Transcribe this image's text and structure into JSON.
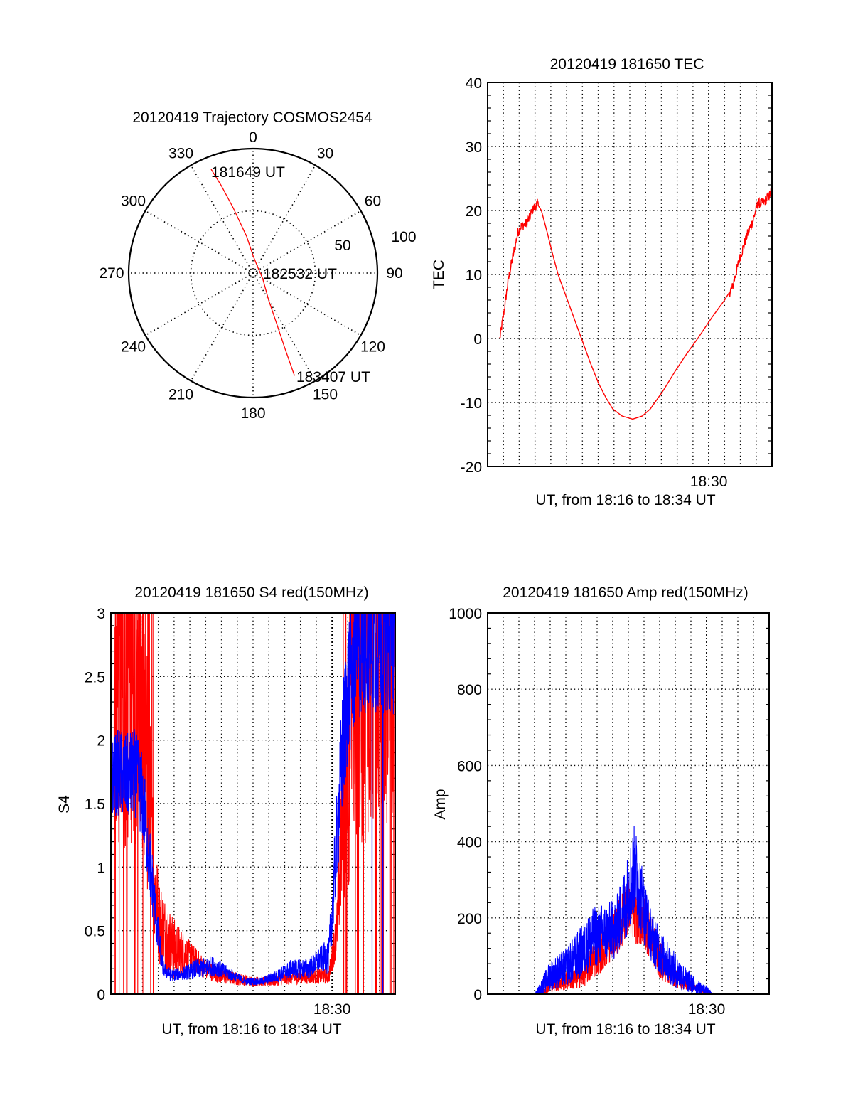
{
  "chart_data": [
    {
      "id": "trajectory",
      "type": "polar",
      "title": "20120419 Trajectory COSMOS2454",
      "satellite": "COSMOS2454",
      "date": "20120419",
      "azimuth_ticks": [
        "0",
        "30",
        "60",
        "90",
        "120",
        "150",
        "180",
        "210",
        "240",
        "270",
        "300",
        "330"
      ],
      "radial_ticks": [
        "50",
        "100"
      ],
      "radial_range": [
        0,
        100
      ],
      "grid": true,
      "series": [
        {
          "name": "track",
          "color": "#ff0000",
          "points_az_r": [
            [
              338,
              90
            ],
            [
              340,
              75
            ],
            [
              343,
              55
            ],
            [
              350,
              30
            ],
            [
              0,
              14
            ],
            [
              40,
              6
            ],
            [
              120,
              9
            ],
            [
              150,
              25
            ],
            [
              155,
              45
            ],
            [
              157,
              65
            ],
            [
              158,
              89
            ]
          ]
        }
      ],
      "annotations": [
        {
          "label": "181649 UT",
          "at": "start"
        },
        {
          "label": "182532 UT",
          "at": "closest"
        },
        {
          "label": "183407 UT",
          "at": "end"
        }
      ]
    },
    {
      "id": "tec",
      "type": "line",
      "title": "20120419 181650 TEC",
      "xlabel": "UT, from 18:16 to 18:34 UT",
      "ylabel": "TEC",
      "xlim_minutes": [
        0,
        18
      ],
      "x_origin": "18:16",
      "x_tick_labels": [
        {
          "t": 14,
          "label": "18:30"
        }
      ],
      "minor_grid_minutes": [
        1,
        2,
        3,
        4,
        5,
        6,
        7,
        8,
        9,
        10,
        11,
        12,
        13,
        14,
        15,
        16,
        17
      ],
      "ylim": [
        -20,
        40
      ],
      "y_ticks": [
        -20,
        -10,
        0,
        10,
        20,
        30,
        40
      ],
      "grid": true,
      "series": [
        {
          "name": "TEC",
          "color": "#ff0000",
          "x": [
            0.77,
            0.9,
            1.08,
            1.3,
            1.53,
            1.75,
            1.9,
            2.1,
            2.3,
            2.45,
            2.65,
            2.8,
            3.0,
            3.15,
            3.4,
            3.78,
            4.1,
            4.46,
            5.2,
            5.94,
            6.5,
            7.02,
            7.5,
            7.92,
            8.5,
            9.18,
            9.8,
            10.3,
            11.1,
            11.9,
            12.6,
            13.3,
            14.2,
            15.0,
            15.5,
            15.9,
            16.4,
            16.8,
            17.1,
            17.5,
            17.8,
            18.0
          ],
          "y": [
            0,
            2,
            5,
            9,
            12,
            14.5,
            16.5,
            17.5,
            17.8,
            18,
            18.8,
            20,
            20.6,
            21,
            20,
            16.5,
            13.3,
            10,
            5,
            0,
            -3.8,
            -7,
            -9.3,
            -11,
            -12.1,
            -12.6,
            -12.1,
            -11,
            -8.2,
            -5,
            -2.4,
            0,
            3.3,
            6,
            8,
            12,
            16,
            18.5,
            21,
            21.3,
            22.3,
            22.8
          ],
          "noise_until_minute": 3.2,
          "noise_from_minute": 15.3
        }
      ]
    },
    {
      "id": "s4",
      "type": "line",
      "title": "20120419 181650 S4 red(150MHz)",
      "xlabel": "UT, from 18:16 to 18:34 UT",
      "ylabel": "S4",
      "xlim_minutes": [
        0,
        18
      ],
      "x_origin": "18:16",
      "x_tick_labels": [
        {
          "t": 14,
          "label": "18:30"
        }
      ],
      "minor_grid_minutes": [
        1,
        2,
        3,
        4,
        5,
        6,
        7,
        8,
        9,
        10,
        11,
        12,
        13,
        14,
        15,
        16,
        17
      ],
      "ylim": [
        0,
        3
      ],
      "y_ticks": [
        0,
        0.5,
        1,
        1.5,
        2,
        2.5,
        3
      ],
      "y_tick_labels": [
        "0",
        "0.5",
        "1",
        "1.5",
        "2",
        "2.5",
        "3"
      ],
      "grid": true,
      "series": [
        {
          "name": "red (150MHz)",
          "color": "#ff0000",
          "x": [
            0.2,
            0.8,
            1.5,
            2.0,
            2.6,
            3.0,
            3.5,
            4.0,
            5.0,
            6.0,
            7.0,
            8.0,
            9.0,
            10.0,
            11.0,
            12.0,
            13.0,
            13.8,
            14.3,
            14.7,
            15.5,
            16.5,
            17.5,
            18.0
          ],
          "y": [
            2.5,
            2.6,
            2.7,
            2.3,
            1.2,
            0.6,
            0.45,
            0.35,
            0.3,
            0.2,
            0.14,
            0.12,
            0.1,
            0.1,
            0.12,
            0.14,
            0.14,
            0.14,
            0.5,
            1.5,
            2.5,
            2.8,
            2.8,
            2.8
          ],
          "spread": [
            1.5,
            1.5,
            1.5,
            1.5,
            0.6,
            0.35,
            0.3,
            0.25,
            0.12,
            0.08,
            0.06,
            0.05,
            0.04,
            0.04,
            0.05,
            0.06,
            0.06,
            0.06,
            0.2,
            0.8,
            1.5,
            1.5,
            1.5,
            1.5
          ]
        },
        {
          "name": "blue",
          "color": "#0000ff",
          "x": [
            0.0,
            0.5,
            1.0,
            1.5,
            2.0,
            2.5,
            3.0,
            3.3,
            3.8,
            4.5,
            5.5,
            6.5,
            7.5,
            8.5,
            9.5,
            10.5,
            11.5,
            12.5,
            13.3,
            13.8,
            14.2,
            14.6,
            15.0,
            15.5,
            16.0,
            16.5,
            17.0,
            17.5,
            18.0
          ],
          "y": [
            1.7,
            1.75,
            1.7,
            1.75,
            1.55,
            1.0,
            0.45,
            0.2,
            0.15,
            0.16,
            0.2,
            0.22,
            0.16,
            0.1,
            0.1,
            0.14,
            0.2,
            0.2,
            0.28,
            0.3,
            1.0,
            1.8,
            2.4,
            2.7,
            2.8,
            2.8,
            2.8,
            2.8,
            2.8
          ],
          "spread": [
            0.3,
            0.35,
            0.35,
            0.35,
            0.35,
            0.3,
            0.15,
            0.06,
            0.05,
            0.05,
            0.08,
            0.08,
            0.05,
            0.03,
            0.03,
            0.05,
            0.08,
            0.08,
            0.1,
            0.15,
            0.35,
            0.5,
            0.6,
            0.6,
            0.6,
            0.6,
            0.6,
            0.6,
            0.6
          ]
        }
      ]
    },
    {
      "id": "amp",
      "type": "line",
      "title": "20120419 181650 Amp red(150MHz)",
      "xlabel": "UT, from 18:16 to 18:34 UT",
      "ylabel": "Amp",
      "xlim_minutes": [
        0,
        18
      ],
      "x_origin": "18:16",
      "x_tick_labels": [
        {
          "t": 14,
          "label": "18:30"
        }
      ],
      "minor_grid_minutes": [
        1,
        2,
        3,
        4,
        5,
        6,
        7,
        8,
        9,
        10,
        11,
        12,
        13,
        14,
        15,
        16,
        17
      ],
      "ylim": [
        0,
        1000
      ],
      "y_ticks": [
        0,
        200,
        400,
        600,
        800,
        1000
      ],
      "grid": true,
      "series": [
        {
          "name": "red (150MHz)",
          "color": "#ff0000",
          "x": [
            0.77,
            3.3,
            3.6,
            4.0,
            5.0,
            6.0,
            6.8,
            7.6,
            8.4,
            9.0,
            9.5,
            10.0,
            10.5,
            11.0,
            11.8,
            12.6,
            13.3,
            14.0,
            14.5,
            18.0
          ],
          "y": [
            0,
            0,
            10,
            25,
            35,
            45,
            90,
            130,
            180,
            230,
            200,
            190,
            140,
            90,
            50,
            30,
            15,
            5,
            0,
            0
          ],
          "spread": [
            0,
            0,
            10,
            20,
            25,
            30,
            50,
            60,
            70,
            70,
            70,
            70,
            60,
            50,
            30,
            20,
            10,
            5,
            0,
            0
          ]
        },
        {
          "name": "blue",
          "color": "#0000ff",
          "x": [
            0.77,
            3.0,
            3.3,
            4.0,
            5.0,
            6.0,
            6.8,
            7.5,
            8.2,
            8.8,
            9.4,
            9.9,
            10.4,
            11.0,
            11.8,
            12.6,
            13.3,
            14.0,
            14.4,
            18.0
          ],
          "y": [
            0,
            0,
            10,
            50,
            70,
            110,
            150,
            160,
            170,
            240,
            330,
            240,
            160,
            110,
            70,
            40,
            20,
            10,
            0,
            0
          ],
          "spread": [
            0,
            0,
            15,
            40,
            50,
            70,
            80,
            80,
            80,
            100,
            120,
            100,
            70,
            60,
            50,
            35,
            20,
            12,
            0,
            0
          ]
        }
      ]
    }
  ]
}
